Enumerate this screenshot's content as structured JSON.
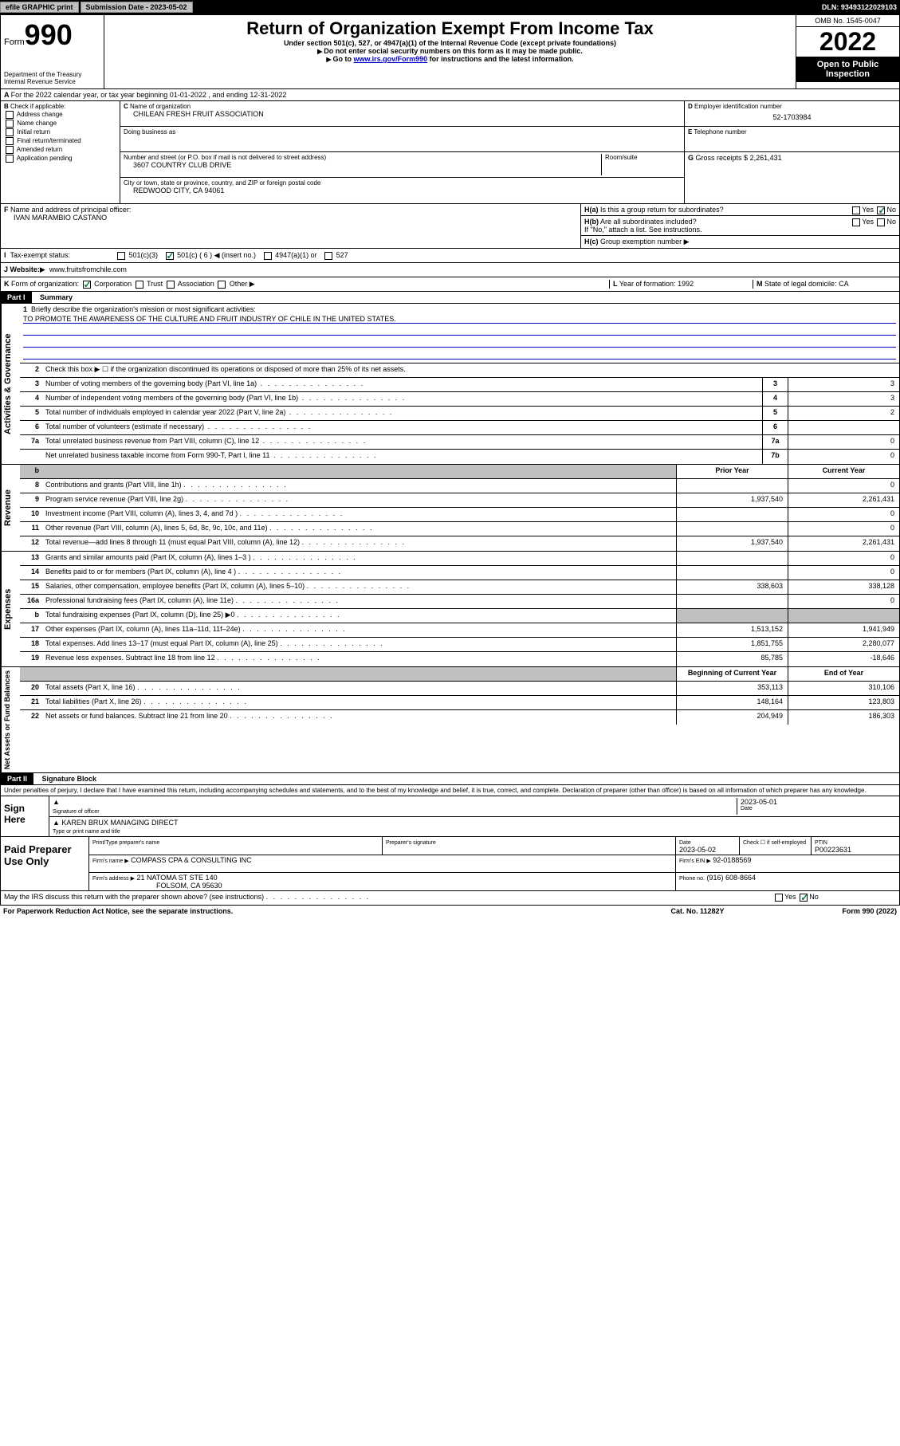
{
  "topbar": {
    "efile": "efile GRAPHIC print",
    "submission_label": "Submission Date - 2023-05-02",
    "dln_label": "DLN: 93493122029103"
  },
  "header": {
    "form_label": "Form",
    "form_num": "990",
    "dept": "Department of the Treasury",
    "irs": "Internal Revenue Service",
    "title": "Return of Organization Exempt From Income Tax",
    "sub1": "Under section 501(c), 527, or 4947(a)(1) of the Internal Revenue Code (except private foundations)",
    "sub2": "Do not enter social security numbers on this form as it may be made public.",
    "sub3_pre": "Go to ",
    "sub3_link": "www.irs.gov/Form990",
    "sub3_post": " for instructions and the latest information.",
    "omb": "OMB No. 1545-0047",
    "year": "2022",
    "open": "Open to Public Inspection"
  },
  "rowA": "For the 2022 calendar year, or tax year beginning 01-01-2022    , and ending 12-31-2022",
  "colB": {
    "label": "Check if applicable:",
    "opts": [
      "Address change",
      "Name change",
      "Initial return",
      "Final return/terminated",
      "Amended return",
      "Application pending"
    ],
    "letter": "B"
  },
  "colC": {
    "name_label": "Name of organization",
    "name": "CHILEAN FRESH FRUIT ASSOCIATION",
    "dba_label": "Doing business as",
    "dba": "",
    "addr_label": "Number and street (or P.O. box if mail is not delivered to street address)",
    "room_label": "Room/suite",
    "addr": "3607 COUNTRY CLUB DRIVE",
    "city_label": "City or town, state or province, country, and ZIP or foreign postal code",
    "city": "REDWOOD CITY, CA  94061",
    "letter": "C"
  },
  "colD": {
    "label": "Employer identification number",
    "val": "52-1703984",
    "letter": "D"
  },
  "colE": {
    "label": "Telephone number",
    "val": "",
    "letter": "E"
  },
  "colG": {
    "label": "Gross receipts $",
    "val": "2,261,431",
    "letter": "G"
  },
  "rowF": {
    "label": "Name and address of principal officer:",
    "val": "IVAN MARAMBIO CASTANO",
    "letter": "F"
  },
  "rowH": {
    "ha": "Is this a group return for subordinates?",
    "hb": "Are all subordinates included?",
    "hb_note": "If \"No,\" attach a list. See instructions.",
    "hc": "Group exemption number",
    "yes": "Yes",
    "no": "No",
    "ha_l": "H(a)",
    "hb_l": "H(b)",
    "hc_l": "H(c)"
  },
  "rowI": {
    "label": "Tax-exempt status:",
    "o1": "501(c)(3)",
    "o2": "501(c) ( 6 )",
    "o2_ins": "(insert no.)",
    "o3": "4947(a)(1) or",
    "o4": "527",
    "letter": "I"
  },
  "rowJ": {
    "label": "Website:",
    "val": "www.fruitsfromchile.com",
    "letter": "J"
  },
  "rowK": {
    "label": "Form of organization:",
    "o1": "Corporation",
    "o2": "Trust",
    "o3": "Association",
    "o4": "Other",
    "letter": "K"
  },
  "rowL": {
    "label": "Year of formation:",
    "val": "1992",
    "letter": "L"
  },
  "rowM": {
    "label": "State of legal domicile:",
    "val": "CA",
    "letter": "M"
  },
  "part1": {
    "header": "Part I",
    "title": "Summary",
    "l1": "Briefly describe the organization's mission or most significant activities:",
    "mission": "TO PROMOTE THE AWARENESS OF THE CULTURE AND FRUIT INDUSTRY OF CHILE IN THE UNITED STATES.",
    "l2": "Check this box ▶ ☐  if the organization discontinued its operations or disposed of more than 25% of its net assets.",
    "side_gov": "Activities & Governance",
    "side_rev": "Revenue",
    "side_exp": "Expenses",
    "side_net": "Net Assets or Fund Balances",
    "prior": "Prior Year",
    "current": "Current Year",
    "begin": "Beginning of Current Year",
    "end": "End of Year",
    "lines_gov": [
      {
        "n": "3",
        "t": "Number of voting members of the governing body (Part VI, line 1a)",
        "box": "3",
        "v": "3"
      },
      {
        "n": "4",
        "t": "Number of independent voting members of the governing body (Part VI, line 1b)",
        "box": "4",
        "v": "3"
      },
      {
        "n": "5",
        "t": "Total number of individuals employed in calendar year 2022 (Part V, line 2a)",
        "box": "5",
        "v": "2"
      },
      {
        "n": "6",
        "t": "Total number of volunteers (estimate if necessary)",
        "box": "6",
        "v": ""
      },
      {
        "n": "7a",
        "t": "Total unrelated business revenue from Part VIII, column (C), line 12",
        "box": "7a",
        "v": "0"
      },
      {
        "n": "",
        "t": "Net unrelated business taxable income from Form 990-T, Part I, line 11",
        "box": "7b",
        "v": "0"
      }
    ],
    "lines_rev": [
      {
        "n": "8",
        "t": "Contributions and grants (Part VIII, line 1h)",
        "p": "",
        "c": "0"
      },
      {
        "n": "9",
        "t": "Program service revenue (Part VIII, line 2g)",
        "p": "1,937,540",
        "c": "2,261,431"
      },
      {
        "n": "10",
        "t": "Investment income (Part VIII, column (A), lines 3, 4, and 7d )",
        "p": "",
        "c": "0"
      },
      {
        "n": "11",
        "t": "Other revenue (Part VIII, column (A), lines 5, 6d, 8c, 9c, 10c, and 11e)",
        "p": "",
        "c": "0"
      },
      {
        "n": "12",
        "t": "Total revenue—add lines 8 through 11 (must equal Part VIII, column (A), line 12)",
        "p": "1,937,540",
        "c": "2,261,431"
      }
    ],
    "lines_exp": [
      {
        "n": "13",
        "t": "Grants and similar amounts paid (Part IX, column (A), lines 1–3 )",
        "p": "",
        "c": "0"
      },
      {
        "n": "14",
        "t": "Benefits paid to or for members (Part IX, column (A), line 4 )",
        "p": "",
        "c": "0"
      },
      {
        "n": "15",
        "t": "Salaries, other compensation, employee benefits (Part IX, column (A), lines 5–10)",
        "p": "338,603",
        "c": "338,128"
      },
      {
        "n": "16a",
        "t": "Professional fundraising fees (Part IX, column (A), line 11e)",
        "p": "",
        "c": "0"
      },
      {
        "n": "b",
        "t": "Total fundraising expenses (Part IX, column (D), line 25) ▶0",
        "p": "SHADE",
        "c": "SHADE"
      },
      {
        "n": "17",
        "t": "Other expenses (Part IX, column (A), lines 11a–11d, 11f–24e)",
        "p": "1,513,152",
        "c": "1,941,949"
      },
      {
        "n": "18",
        "t": "Total expenses. Add lines 13–17 (must equal Part IX, column (A), line 25)",
        "p": "1,851,755",
        "c": "2,280,077"
      },
      {
        "n": "19",
        "t": "Revenue less expenses. Subtract line 18 from line 12",
        "p": "85,785",
        "c": "-18,646"
      }
    ],
    "lines_net": [
      {
        "n": "20",
        "t": "Total assets (Part X, line 16)",
        "p": "353,113",
        "c": "310,106"
      },
      {
        "n": "21",
        "t": "Total liabilities (Part X, line 26)",
        "p": "148,164",
        "c": "123,803"
      },
      {
        "n": "22",
        "t": "Net assets or fund balances. Subtract line 21 from line 20",
        "p": "204,949",
        "c": "186,303"
      }
    ]
  },
  "part2": {
    "header": "Part II",
    "title": "Signature Block",
    "decl": "Under penalties of perjury, I declare that I have examined this return, including accompanying schedules and statements, and to the best of my knowledge and belief, it is true, correct, and complete. Declaration of preparer (other than officer) is based on all information of which preparer has any knowledge.",
    "sign_here": "Sign Here",
    "sig_officer": "Signature of officer",
    "sig_date": "Date",
    "sig_date_val": "2023-05-01",
    "type_name": "Type or print name and title",
    "officer_name": "KAREN BRUX  MANAGING DIRECT",
    "paid": "Paid Preparer Use Only",
    "ptype": "Print/Type preparer's name",
    "psig": "Preparer's signature",
    "pdate": "Date",
    "pdate_val": "2023-05-02",
    "pcheck": "Check ☐ if self-employed",
    "ptin": "PTIN",
    "ptin_val": "P00223631",
    "firm_name_l": "Firm's name    ▶",
    "firm_name": "COMPASS CPA & CONSULTING INC",
    "firm_ein_l": "Firm's EIN ▶",
    "firm_ein": "92-0188569",
    "firm_addr_l": "Firm's address ▶",
    "firm_addr": "21 NATOMA ST STE 140",
    "firm_city": "FOLSOM, CA  95630",
    "phone_l": "Phone no.",
    "phone": "(916) 608-8664",
    "may_irs": "May the IRS discuss this return with the preparer shown above? (see instructions)"
  },
  "footer": {
    "pra": "For Paperwork Reduction Act Notice, see the separate instructions.",
    "cat": "Cat. No. 11282Y",
    "form": "Form 990 (2022)"
  }
}
